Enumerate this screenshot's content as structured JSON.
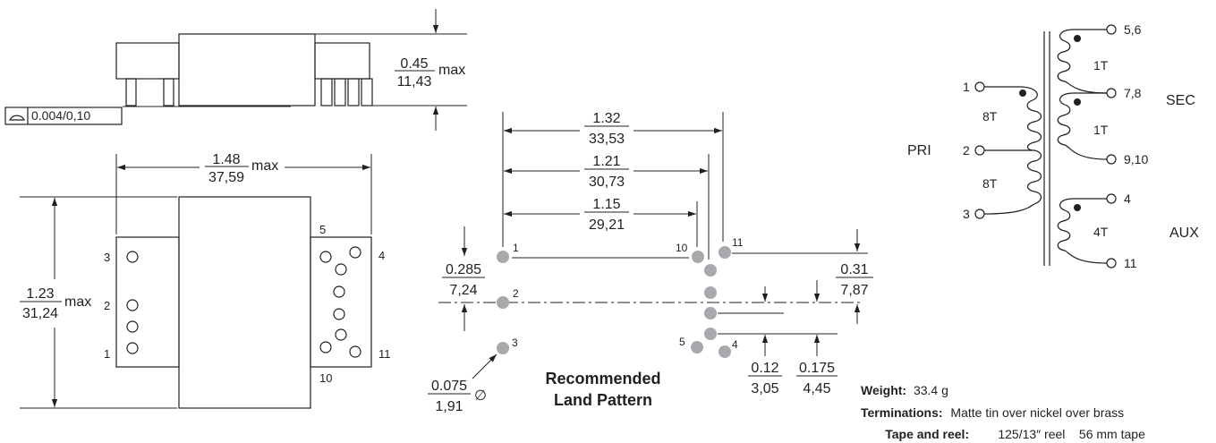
{
  "side_view": {
    "flatness_value": "0.004/0,10",
    "height_in": "0.45",
    "height_mm": "11,43",
    "height_suffix": "max"
  },
  "top_view": {
    "width_in": "1.48",
    "width_mm": "37,59",
    "width_suffix": "max",
    "length_in": "1.23",
    "length_mm": "31,24",
    "length_suffix": "max",
    "pin_labels": {
      "p1": "1",
      "p2": "2",
      "p3": "3",
      "p4": "4",
      "p5": "5",
      "p10": "10",
      "p11": "11"
    }
  },
  "land_pattern": {
    "title_line1": "Recommended",
    "title_line2": "Land Pattern",
    "dim_a_in": "1.32",
    "dim_a_mm": "33,53",
    "dim_b_in": "1.21",
    "dim_b_mm": "30,73",
    "dim_c_in": "1.15",
    "dim_c_mm": "29,21",
    "dim_d_in": "0.285",
    "dim_d_mm": "7,24",
    "dim_e_in": "0.31",
    "dim_e_mm": "7,87",
    "dim_f_in": "0.12",
    "dim_f_mm": "3,05",
    "dim_g_in": "0.175",
    "dim_g_mm": "4,45",
    "hole_in": "0.075",
    "hole_mm": "1,91",
    "hole_symbol": "∅",
    "pin_labels": {
      "p1": "1",
      "p2": "2",
      "p3": "3",
      "p4": "4",
      "p5": "5",
      "p10": "10",
      "p11": "11"
    }
  },
  "schematic": {
    "pri_label": "PRI",
    "sec_label": "SEC",
    "aux_label": "AUX",
    "turns": {
      "pri_top": "8T",
      "pri_bottom": "8T",
      "sec_top": "1T",
      "sec_bottom": "1T",
      "aux": "4T"
    },
    "pins": {
      "p1": "1",
      "p2": "2",
      "p3": "3",
      "p56": "5,6",
      "p78": "7,8",
      "p910": "9,10",
      "p4": "4",
      "p11": "11"
    }
  },
  "specs": {
    "weight_label": "Weight:",
    "weight_value": "33.4 g",
    "terminations_label": "Terminations:",
    "terminations_value": "Matte tin over nickel over brass",
    "tape_label": "Tape and reel:",
    "tape_value": "125/13″ reel    56 mm tape"
  }
}
